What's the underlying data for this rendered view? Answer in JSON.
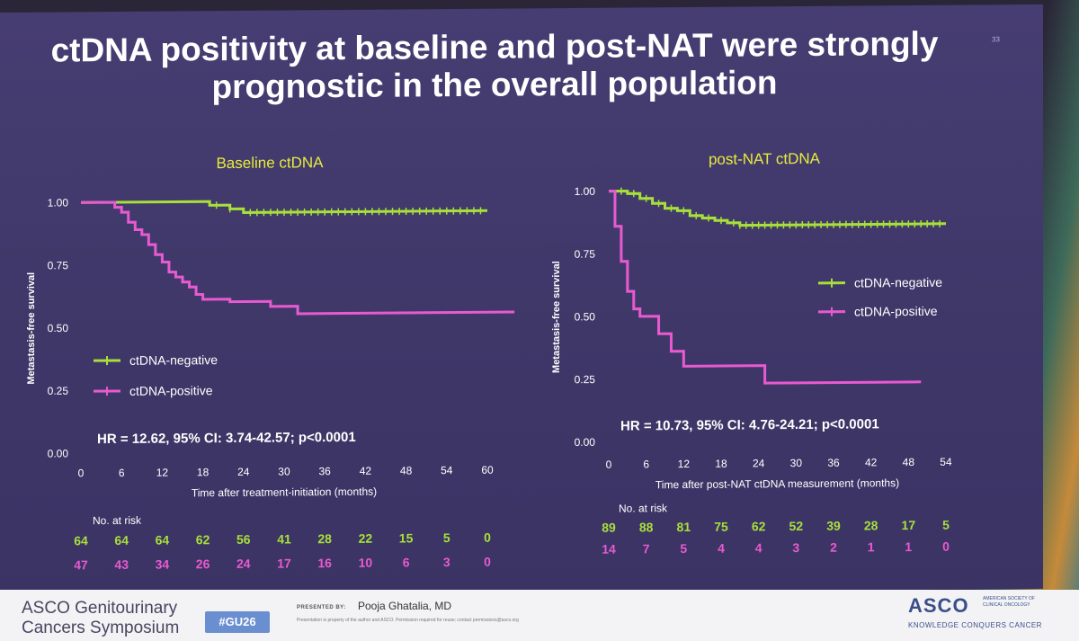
{
  "slide": {
    "title_line1": "ctDNA positivity at baseline and post-NAT were strongly",
    "title_line2": "prognostic in the overall population",
    "page_number": "33"
  },
  "colors": {
    "negative": "#a8e03a",
    "positive": "#e85ad0",
    "panel_title": "#e8ec3c",
    "background": "#433a6e"
  },
  "footer": {
    "symposium_line1": "ASCO Genitourinary",
    "symposium_line2": "Cancers Symposium",
    "hashtag": "#GU26",
    "presented_by_label": "PRESENTED BY:",
    "presenter": "Pooja Ghatalia, MD",
    "disclaimer": "Presentation is property of the author and ASCO. Permission required for reuse; contact permissions@asco.org",
    "asco_logo": "ASCO",
    "asco_sub_line1": "AMERICAN SOCIETY OF",
    "asco_sub_line2": "CLINICAL ONCOLOGY",
    "asco_tagline": "KNOWLEDGE CONQUERS CANCER"
  },
  "chart_data": [
    {
      "type": "line",
      "panel_title": "Baseline ctDNA",
      "xlabel": "Time after treatment-initiation (months)",
      "ylabel": "Metastasis-free survival",
      "x_ticks": [
        0,
        6,
        12,
        18,
        24,
        30,
        36,
        42,
        48,
        54,
        60
      ],
      "y_ticks": [
        "1.00",
        "0.75",
        "0.50",
        "0.25",
        "0.00"
      ],
      "xlim": [
        0,
        60
      ],
      "ylim": [
        0,
        1
      ],
      "legend_position": "bottom-left",
      "hr_text": "HR = 12.62, 95% CI: 3.74-42.57; p<0.0001",
      "risk_label": "No. at risk",
      "series": [
        {
          "name": "ctDNA-negative",
          "steps": [
            [
              0,
              1.0
            ],
            [
              18,
              1.0
            ],
            [
              19,
              0.985
            ],
            [
              22,
              0.97
            ],
            [
              24,
              0.955
            ],
            [
              60,
              0.955
            ]
          ],
          "censors": [
            20,
            22,
            25,
            26,
            27,
            28,
            29,
            30,
            31,
            32,
            33,
            34,
            35,
            36,
            37,
            38,
            39,
            40,
            41,
            42,
            43,
            44,
            45,
            46,
            47,
            48,
            49,
            50,
            51,
            52,
            53,
            54,
            55,
            56,
            57,
            58,
            59
          ],
          "at_risk": [
            "64",
            "64",
            "64",
            "62",
            "56",
            "41",
            "28",
            "22",
            "15",
            "5",
            "0"
          ]
        },
        {
          "name": "ctDNA-positive",
          "steps": [
            [
              0,
              1.0
            ],
            [
              5,
              0.98
            ],
            [
              6,
              0.96
            ],
            [
              7,
              0.92
            ],
            [
              8,
              0.89
            ],
            [
              9,
              0.87
            ],
            [
              10,
              0.83
            ],
            [
              11,
              0.79
            ],
            [
              12,
              0.76
            ],
            [
              13,
              0.72
            ],
            [
              14,
              0.7
            ],
            [
              15,
              0.68
            ],
            [
              16,
              0.66
            ],
            [
              17,
              0.63
            ],
            [
              18,
              0.61
            ],
            [
              22,
              0.6
            ],
            [
              28,
              0.58
            ],
            [
              32,
              0.55
            ],
            [
              64,
              0.55
            ]
          ],
          "censors": [],
          "at_risk": [
            "47",
            "43",
            "34",
            "26",
            "24",
            "17",
            "16",
            "10",
            "6",
            "3",
            "0"
          ]
        }
      ]
    },
    {
      "type": "line",
      "panel_title": "post-NAT ctDNA",
      "xlabel": "Time after post-NAT ctDNA measurement (months)",
      "ylabel": "Metastasis-free survival",
      "x_ticks": [
        0,
        6,
        12,
        18,
        24,
        30,
        36,
        42,
        48,
        54
      ],
      "y_ticks": [
        "1.00",
        "0.75",
        "0.50",
        "0.25",
        "0.00"
      ],
      "xlim": [
        0,
        54
      ],
      "ylim": [
        0,
        1
      ],
      "legend_position": "right",
      "hr_text": "HR = 10.73, 95% CI: 4.76-24.21; p<0.0001",
      "risk_label": "No. at risk",
      "series": [
        {
          "name": "ctDNA-negative",
          "steps": [
            [
              0,
              1.0
            ],
            [
              3,
              0.99
            ],
            [
              5,
              0.97
            ],
            [
              7,
              0.95
            ],
            [
              9,
              0.93
            ],
            [
              11,
              0.92
            ],
            [
              13,
              0.9
            ],
            [
              15,
              0.89
            ],
            [
              17,
              0.88
            ],
            [
              19,
              0.87
            ],
            [
              21,
              0.86
            ],
            [
              54,
              0.86
            ]
          ],
          "censors": [
            2,
            4,
            6,
            8,
            10,
            12,
            14,
            16,
            18,
            20,
            21,
            22,
            23,
            24,
            25,
            26,
            27,
            28,
            29,
            30,
            31,
            32,
            33,
            34,
            35,
            36,
            37,
            38,
            39,
            40,
            41,
            42,
            43,
            44,
            45,
            46,
            47,
            48,
            49,
            50,
            51,
            52,
            53
          ],
          "at_risk": [
            "89",
            "88",
            "81",
            "75",
            "62",
            "52",
            "39",
            "28",
            "17",
            "5"
          ]
        },
        {
          "name": "ctDNA-positive",
          "steps": [
            [
              0,
              1.0
            ],
            [
              1,
              0.86
            ],
            [
              2,
              0.72
            ],
            [
              3,
              0.6
            ],
            [
              4,
              0.53
            ],
            [
              5,
              0.5
            ],
            [
              8,
              0.43
            ],
            [
              10,
              0.36
            ],
            [
              12,
              0.3
            ],
            [
              25,
              0.23
            ],
            [
              50,
              0.23
            ]
          ],
          "censors": [],
          "at_risk": [
            "14",
            "7",
            "5",
            "4",
            "4",
            "3",
            "2",
            "1",
            "1",
            "0"
          ]
        }
      ]
    }
  ]
}
